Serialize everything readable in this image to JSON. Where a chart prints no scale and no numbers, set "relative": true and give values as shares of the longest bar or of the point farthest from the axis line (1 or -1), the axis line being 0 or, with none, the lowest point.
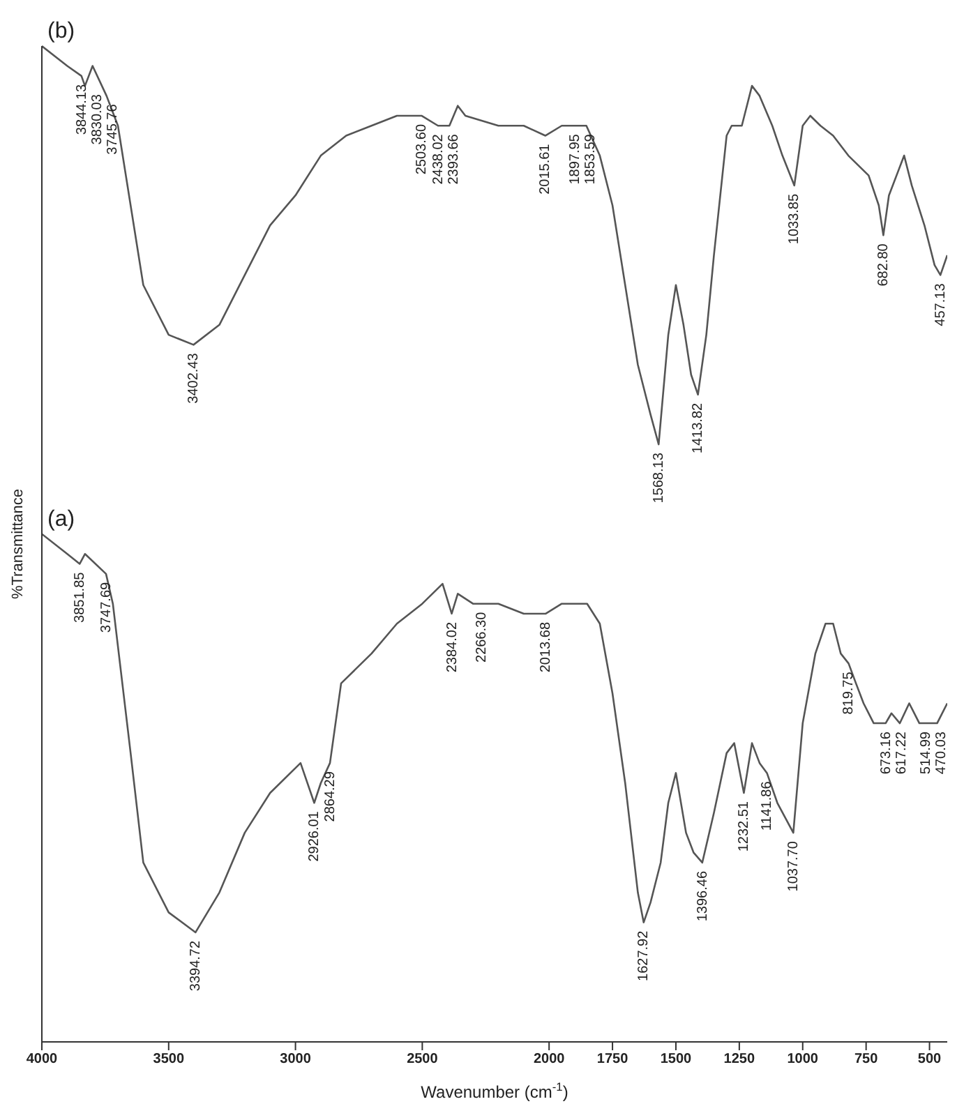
{
  "chart_data": {
    "type": "line",
    "relative": true,
    "xlabel": "Wavenumber (cm$^{-1}$)",
    "ylabel": "%Transmittance",
    "xlim": [
      4000,
      430
    ],
    "xticks": [
      4000,
      3500,
      3000,
      2500,
      2000,
      1750,
      1500,
      1250,
      1000,
      750,
      500
    ],
    "series": [
      {
        "name": "(b)",
        "color": "#555555",
        "x": [
          4000,
          3900,
          3844,
          3830,
          3800,
          3745,
          3700,
          3650,
          3600,
          3500,
          3402,
          3300,
          3200,
          3100,
          3000,
          2900,
          2800,
          2700,
          2600,
          2503,
          2438,
          2393,
          2360,
          2330,
          2200,
          2100,
          2015,
          1950,
          1897,
          1853,
          1800,
          1750,
          1700,
          1650,
          1600,
          1568,
          1530,
          1500,
          1470,
          1440,
          1413,
          1380,
          1350,
          1300,
          1280,
          1240,
          1200,
          1170,
          1120,
          1080,
          1033,
          1000,
          970,
          930,
          880,
          820,
          780,
          740,
          700,
          682,
          660,
          630,
          600,
          570,
          520,
          480,
          457,
          430
        ],
        "values": [
          1.0,
          0.98,
          0.97,
          0.96,
          0.98,
          0.95,
          0.92,
          0.84,
          0.76,
          0.71,
          0.7,
          0.72,
          0.77,
          0.82,
          0.85,
          0.89,
          0.91,
          0.92,
          0.93,
          0.93,
          0.92,
          0.92,
          0.94,
          0.93,
          0.92,
          0.92,
          0.91,
          0.92,
          0.92,
          0.92,
          0.89,
          0.84,
          0.76,
          0.68,
          0.63,
          0.6,
          0.71,
          0.76,
          0.72,
          0.67,
          0.65,
          0.71,
          0.79,
          0.91,
          0.92,
          0.92,
          0.96,
          0.95,
          0.92,
          0.89,
          0.86,
          0.92,
          0.93,
          0.92,
          0.91,
          0.89,
          0.88,
          0.87,
          0.84,
          0.81,
          0.85,
          0.87,
          0.89,
          0.86,
          0.82,
          0.78,
          0.77,
          0.79
        ]
      },
      {
        "name": "(a)",
        "color": "#555555",
        "x": [
          4000,
          3900,
          3851,
          3830,
          3747,
          3720,
          3650,
          3600,
          3500,
          3394,
          3300,
          3200,
          3100,
          2980,
          2926,
          2900,
          2864,
          2820,
          2700,
          2600,
          2500,
          2420,
          2384,
          2360,
          2300,
          2266,
          2200,
          2100,
          2013,
          1950,
          1900,
          1850,
          1800,
          1750,
          1700,
          1650,
          1627,
          1600,
          1560,
          1530,
          1500,
          1460,
          1430,
          1396,
          1350,
          1300,
          1270,
          1232,
          1200,
          1170,
          1141,
          1100,
          1037,
          1000,
          950,
          910,
          880,
          850,
          819,
          790,
          760,
          720,
          673,
          650,
          617,
          580,
          540,
          515,
          490,
          470,
          430
        ],
        "values": [
          0.51,
          0.49,
          0.48,
          0.49,
          0.47,
          0.44,
          0.29,
          0.18,
          0.13,
          0.11,
          0.15,
          0.21,
          0.25,
          0.28,
          0.24,
          0.26,
          0.28,
          0.36,
          0.39,
          0.42,
          0.44,
          0.46,
          0.43,
          0.45,
          0.44,
          0.44,
          0.44,
          0.43,
          0.43,
          0.44,
          0.44,
          0.44,
          0.42,
          0.35,
          0.26,
          0.15,
          0.12,
          0.14,
          0.18,
          0.24,
          0.27,
          0.21,
          0.19,
          0.18,
          0.23,
          0.29,
          0.3,
          0.25,
          0.3,
          0.28,
          0.27,
          0.24,
          0.21,
          0.32,
          0.39,
          0.42,
          0.42,
          0.39,
          0.38,
          0.36,
          0.34,
          0.32,
          0.32,
          0.33,
          0.32,
          0.34,
          0.32,
          0.32,
          0.32,
          0.32,
          0.34
        ]
      }
    ],
    "annotations": [
      {
        "text": "3844.13",
        "x": 3844.13,
        "y": 0.97
      },
      {
        "text": "3830.03",
        "x": 3830.03,
        "y": 0.96
      },
      {
        "text": "3745.76",
        "x": 3745.76,
        "y": 0.95
      },
      {
        "text": "3402.43",
        "x": 3402.43,
        "y": 0.7
      },
      {
        "text": "2503.60",
        "x": 2503.6,
        "y": 0.93
      },
      {
        "text": "2438.02",
        "x": 2438.02,
        "y": 0.92
      },
      {
        "text": "2393.66",
        "x": 2393.66,
        "y": 0.92
      },
      {
        "text": "2015.61",
        "x": 2015.61,
        "y": 0.91
      },
      {
        "text": "1897.95",
        "x": 1897.95,
        "y": 0.92
      },
      {
        "text": "1853.59",
        "x": 1853.59,
        "y": 0.92
      },
      {
        "text": "1568.13",
        "x": 1568.13,
        "y": 0.6
      },
      {
        "text": "1413.82",
        "x": 1413.82,
        "y": 0.65
      },
      {
        "text": "1033.85",
        "x": 1033.85,
        "y": 0.86
      },
      {
        "text": "682.80",
        "x": 682.8,
        "y": 0.81
      },
      {
        "text": "457.13",
        "x": 457.13,
        "y": 0.77
      },
      {
        "text": "3851.85",
        "x": 3851.85,
        "y": 0.48
      },
      {
        "text": "3747.69",
        "x": 3747.69,
        "y": 0.47
      },
      {
        "text": "3394.72",
        "x": 3394.72,
        "y": 0.11
      },
      {
        "text": "2926.01",
        "x": 2926.01,
        "y": 0.24
      },
      {
        "text": "2864.29",
        "x": 2864.29,
        "y": 0.28
      },
      {
        "text": "2384.02",
        "x": 2384.02,
        "y": 0.43
      },
      {
        "text": "2266.30",
        "x": 2266.3,
        "y": 0.44
      },
      {
        "text": "2013.68",
        "x": 2013.68,
        "y": 0.43
      },
      {
        "text": "1627.92",
        "x": 1627.92,
        "y": 0.12
      },
      {
        "text": "1396.46",
        "x": 1396.46,
        "y": 0.18
      },
      {
        "text": "1232.51",
        "x": 1232.51,
        "y": 0.25
      },
      {
        "text": "1141.86",
        "x": 1141.86,
        "y": 0.27
      },
      {
        "text": "1037.70",
        "x": 1037.7,
        "y": 0.21
      },
      {
        "text": "819.75",
        "x": 819.75,
        "y": 0.38
      },
      {
        "text": "673.16",
        "x": 673.16,
        "y": 0.32
      },
      {
        "text": "617.22",
        "x": 617.22,
        "y": 0.32
      },
      {
        "text": "514.99",
        "x": 514.99,
        "y": 0.32
      },
      {
        "text": "470.03",
        "x": 470.03,
        "y": 0.32
      }
    ]
  }
}
